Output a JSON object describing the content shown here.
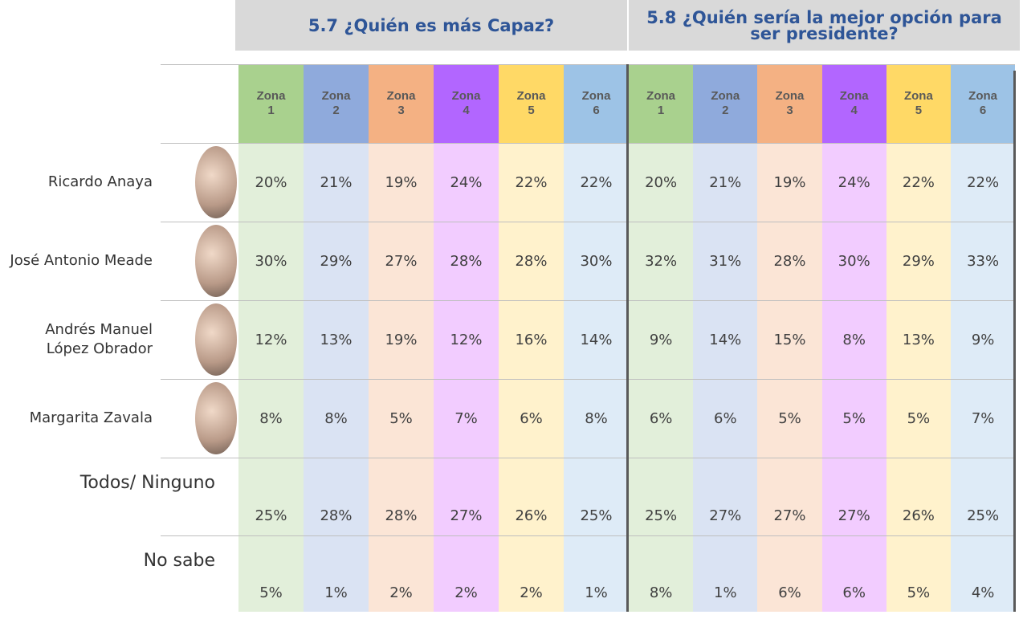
{
  "candidates": [
    "Ricardo Anaya",
    "José Antonio Meade",
    "Andrés Manuel López Obrador",
    "Margarita Zavala",
    "Todos/ Ninguno",
    "No sabe"
  ],
  "groups": [
    {
      "title": "5.7 ¿Quién es más Capaz?",
      "zones": [
        "Zona 1",
        "Zona 2",
        "Zona 3",
        "Zona 4",
        "Zona 5",
        "Zona 6"
      ],
      "rows": [
        [
          "20%",
          "21%",
          "19%",
          "24%",
          "22%",
          "22%"
        ],
        [
          "30%",
          "29%",
          "27%",
          "28%",
          "28%",
          "30%"
        ],
        [
          "12%",
          "13%",
          "19%",
          "12%",
          "16%",
          "14%"
        ],
        [
          "8%",
          "8%",
          "5%",
          "7%",
          "6%",
          "8%"
        ],
        [
          "25%",
          "28%",
          "28%",
          "27%",
          "26%",
          "25%"
        ],
        [
          "5%",
          "1%",
          "2%",
          "2%",
          "2%",
          "1%"
        ]
      ]
    },
    {
      "title": "5.8 ¿Quién sería la mejor opción para ser presidente?",
      "zones": [
        "Zona 1",
        "Zona 2",
        "Zona 3",
        "Zona 4",
        "Zona 5",
        "Zona 6"
      ],
      "rows": [
        [
          "20%",
          "21%",
          "19%",
          "24%",
          "22%",
          "22%"
        ],
        [
          "32%",
          "31%",
          "28%",
          "30%",
          "29%",
          "33%"
        ],
        [
          "9%",
          "14%",
          "15%",
          "8%",
          "13%",
          "9%"
        ],
        [
          "6%",
          "6%",
          "5%",
          "5%",
          "5%",
          "7%"
        ],
        [
          "25%",
          "27%",
          "27%",
          "27%",
          "26%",
          "25%"
        ],
        [
          "8%",
          "1%",
          "6%",
          "6%",
          "5%",
          "4%"
        ]
      ]
    }
  ]
}
